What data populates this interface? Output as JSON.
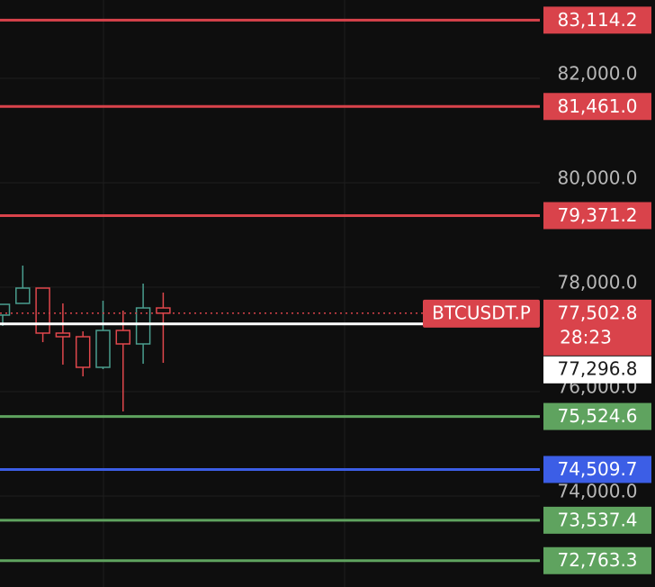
{
  "chart_data": {
    "type": "candlestick",
    "ylim": [
      72259,
      83500
    ],
    "yticks": [
      {
        "value": 82000,
        "label": "82,000.0"
      },
      {
        "value": 80000,
        "label": "80,000.0"
      },
      {
        "value": 78000,
        "label": "78,000.0"
      },
      {
        "value": 76000,
        "label": "76,000.0"
      },
      {
        "value": 74000,
        "label": "74,000.0"
      }
    ],
    "grid": true,
    "up_color": "#4a9e8f",
    "down_color": "#e0474c",
    "candles": {
      "open": [
        77466,
        77690,
        77983,
        77121,
        77052,
        76466,
        77172,
        76914,
        77603
      ],
      "high": [
        77672,
        78414,
        77983,
        77690,
        77155,
        77741,
        77552,
        78069,
        77897
      ],
      "low": [
        77259,
        77690,
        76948,
        76517,
        76293,
        76431,
        75621,
        76534,
        76552
      ],
      "close": [
        77672,
        77983,
        77121,
        77052,
        76466,
        77172,
        76914,
        77603,
        77502.8
      ]
    },
    "levels": {
      "values": [
        83114.2,
        81461.0,
        79371.2,
        75524.6,
        74509.7,
        73537.4,
        72763.3
      ],
      "value_labels": [
        "83,114.2",
        "81,461.0",
        "79,371.2",
        "75,524.6",
        "74,509.7",
        "73,537.4",
        "72,763.3"
      ],
      "colors": [
        "#d9434b",
        "#d9434b",
        "#d9434b",
        "#5fa35f",
        "#3c5ee6",
        "#5fa35f",
        "#5fa35f"
      ]
    },
    "last_price": {
      "symbol": "BTCUSDT.P",
      "value": 77502.8,
      "value_label": "77,502.8",
      "countdown": "28:23",
      "color": "#d9434b"
    },
    "marker": {
      "value": 77296.8,
      "value_label": "77,296.8"
    }
  }
}
